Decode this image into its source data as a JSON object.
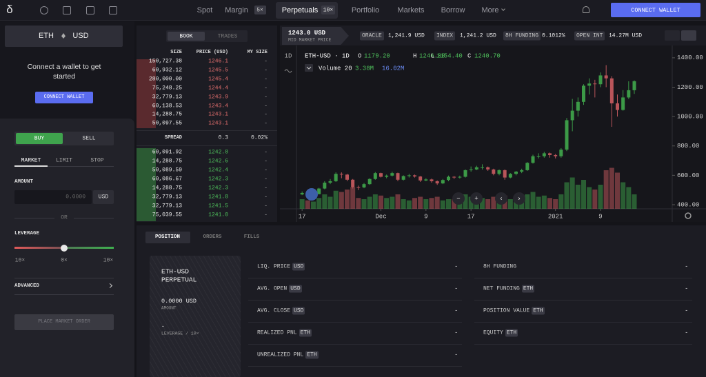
{
  "nav": {
    "logo": "δ",
    "items": [
      "Spot",
      "Margin",
      "Perpetuals",
      "Portfolio",
      "Markets",
      "Borrow",
      "More"
    ],
    "margin_badge": "5×",
    "perpetuals_badge": "10×",
    "connect": "CONNECT WALLET"
  },
  "sidebar": {
    "base": "ETH",
    "quote": "USD",
    "connect_text": "Connect a wallet to get started",
    "connect_button": "CONNECT WALLET",
    "sides": [
      "BUY",
      "SELL"
    ],
    "order_types": [
      "MARKET",
      "LIMIT",
      "STOP"
    ],
    "amount_label": "AMOUNT",
    "amount_placeholder": "0.0000",
    "amount_unit": "USD",
    "or": "OR",
    "leverage_label": "LEVERAGE",
    "leverage_marks": [
      "10×",
      "0×",
      "10×"
    ],
    "advanced": "ADVANCED",
    "submit": "PLACE MARKET ORDER"
  },
  "orderbook": {
    "tabs": [
      "BOOK",
      "TRADES"
    ],
    "headers": [
      "SIZE",
      "PRICE (USD)",
      "MY SIZE"
    ],
    "asks": [
      [
        "150,727.38",
        "1246.1",
        "-"
      ],
      [
        "60,932.12",
        "1245.5",
        "-"
      ],
      [
        "280,000.00",
        "1245.4",
        "-"
      ],
      [
        "75,248.25",
        "1244.4",
        "-"
      ],
      [
        "32,779.13",
        "1243.9",
        "-"
      ],
      [
        "60,138.53",
        "1243.4",
        "-"
      ],
      [
        "14,288.75",
        "1243.1",
        "-"
      ],
      [
        "50,097.55",
        "1243.1",
        "-"
      ]
    ],
    "spread": [
      "SPREAD",
      "0.3",
      "0.02%"
    ],
    "bids": [
      [
        "60,091.92",
        "1242.8",
        "-"
      ],
      [
        "14,288.75",
        "1242.6",
        "-"
      ],
      [
        "50,089.59",
        "1242.4",
        "-"
      ],
      [
        "60,086.67",
        "1242.3",
        "-"
      ],
      [
        "14,288.75",
        "1242.3",
        "-"
      ],
      [
        "32,779.13",
        "1241.8",
        "-"
      ],
      [
        "32,779.13",
        "1241.5",
        "-"
      ],
      [
        "75,039.55",
        "1241.0",
        "-"
      ]
    ]
  },
  "market_header": {
    "price": "1243.0 USD",
    "price_label": "MID MARKET PRICE",
    "stats": [
      {
        "label": "ORACLE",
        "value": "1,241.9 USD"
      },
      {
        "label": "INDEX",
        "value": "1,241.2 USD"
      },
      {
        "label": "8H FUNDING",
        "value": "0.1012%"
      },
      {
        "label": "OPEN INT",
        "value": "14.27M USD"
      }
    ]
  },
  "chart": {
    "type": "candlestick",
    "interval_button": "1D",
    "title": "ETH-USD · 1D",
    "ohlc_labels": [
      "O",
      "H",
      "L",
      "C"
    ],
    "ohlc_values": [
      "1179.20",
      "1246.00",
      "1154.40",
      "1240.70"
    ],
    "volume_label": "Volume 20",
    "volume_values": [
      "3.38M",
      "16.02M"
    ],
    "controls": [
      "−",
      "+",
      "‹",
      "›"
    ],
    "up_color": "#3c9a47",
    "down_color": "#b9555a",
    "open": [
      470,
      480,
      470,
      472,
      510,
      550,
      560,
      610,
      605,
      570,
      520,
      518,
      540,
      575,
      615,
      590,
      598,
      615,
      570,
      595,
      600,
      592,
      565,
      572,
      560,
      545,
      568,
      590,
      585,
      590,
      635,
      640,
      655,
      655,
      640,
      610,
      635,
      585,
      610,
      625,
      635,
      685,
      730,
      730,
      750,
      738,
      730,
      775,
      975,
      1040,
      1100,
      1210,
      1225,
      1220,
      1280,
      1260,
      1090,
      1045,
      1130,
      1179.2
    ],
    "high": [
      490,
      488,
      478,
      515,
      560,
      575,
      620,
      620,
      610,
      575,
      530,
      548,
      580,
      622,
      618,
      605,
      625,
      618,
      600,
      610,
      605,
      595,
      580,
      578,
      565,
      575,
      598,
      595,
      598,
      640,
      660,
      665,
      675,
      660,
      645,
      640,
      640,
      615,
      630,
      645,
      690,
      740,
      750,
      760,
      755,
      745,
      785,
      990,
      1120,
      1130,
      1220,
      1260,
      1250,
      1300,
      1350,
      1275,
      1150,
      1180,
      1240,
      1246
    ],
    "low": [
      465,
      460,
      462,
      470,
      505,
      540,
      555,
      580,
      560,
      510,
      500,
      512,
      535,
      570,
      585,
      580,
      592,
      560,
      565,
      585,
      585,
      555,
      560,
      550,
      535,
      540,
      560,
      575,
      578,
      585,
      625,
      635,
      640,
      630,
      600,
      600,
      570,
      580,
      600,
      615,
      630,
      680,
      715,
      720,
      720,
      715,
      720,
      765,
      900,
      1000,
      1080,
      1150,
      1130,
      1200,
      1200,
      930,
      1000,
      1040,
      1120,
      1154.4
    ],
    "close": [
      480,
      470,
      472,
      510,
      550,
      560,
      610,
      605,
      570,
      520,
      518,
      540,
      575,
      615,
      590,
      598,
      615,
      570,
      595,
      600,
      592,
      565,
      572,
      560,
      545,
      568,
      590,
      585,
      590,
      635,
      640,
      655,
      655,
      640,
      610,
      635,
      585,
      610,
      625,
      635,
      685,
      730,
      730,
      750,
      738,
      730,
      775,
      975,
      1040,
      1100,
      1210,
      1225,
      1220,
      1280,
      1260,
      1090,
      1045,
      1130,
      1179.2,
      1240.7
    ],
    "volume": [
      8,
      7,
      6,
      9,
      12,
      10,
      15,
      14,
      16,
      18,
      9,
      8,
      10,
      12,
      11,
      9,
      10,
      12,
      8,
      7,
      9,
      10,
      8,
      9,
      10,
      7,
      8,
      8,
      7,
      12,
      10,
      11,
      9,
      8,
      10,
      9,
      11,
      8,
      7,
      8,
      12,
      14,
      10,
      11,
      9,
      8,
      12,
      22,
      26,
      20,
      24,
      18,
      16,
      20,
      32,
      34,
      30,
      22,
      18,
      12
    ],
    "volume_ylim": [
      0,
      40
    ],
    "ylim": [
      370,
      1465
    ],
    "yticks": [
      {
        "value": 1400,
        "label": "1400.00"
      },
      {
        "value": 1200,
        "label": "1200.00"
      },
      {
        "value": 1000,
        "label": "1000.00"
      },
      {
        "value": 800,
        "label": "800.00"
      },
      {
        "value": 600,
        "label": "600.00"
      },
      {
        "value": 400,
        "label": "400.00"
      }
    ],
    "xlim": [
      -1,
      65
    ],
    "xticks": [
      {
        "value": 0,
        "label": "17"
      },
      {
        "value": 14,
        "label": "Dec"
      },
      {
        "value": 22,
        "label": "9"
      },
      {
        "value": 30,
        "label": "17"
      },
      {
        "value": 45,
        "label": "2021"
      },
      {
        "value": 53,
        "label": "9"
      }
    ]
  },
  "positions": {
    "tabs": [
      "POSITION",
      "ORDERS",
      "FILLS"
    ],
    "card": {
      "market": "ETH-USD",
      "kind": "PERPETUAL",
      "amount": "0.0000 USD",
      "amount_label": "AMOUNT",
      "leverage": "-",
      "leverage_label": "LEVERAGE / 10×"
    },
    "left_fields": [
      {
        "label": "LIQ. PRICE",
        "unit": "USD",
        "value": "-"
      },
      {
        "label": "AVG. OPEN",
        "unit": "USD",
        "value": "-"
      },
      {
        "label": "AVG. CLOSE",
        "unit": "USD",
        "value": "-"
      },
      {
        "label": "REALIZED PNL",
        "unit": "ETH",
        "value": "-"
      },
      {
        "label": "UNREALIZED PNL",
        "unit": "ETH",
        "value": "-"
      }
    ],
    "right_fields": [
      {
        "label": "8H FUNDING",
        "value": "-"
      },
      {
        "label": "NET FUNDING",
        "unit": "ETH",
        "value": "-"
      },
      {
        "label": "POSITION VALUE",
        "unit": "ETH",
        "value": "-"
      },
      {
        "label": "EQUITY",
        "unit": "ETH",
        "value": "-"
      }
    ]
  }
}
